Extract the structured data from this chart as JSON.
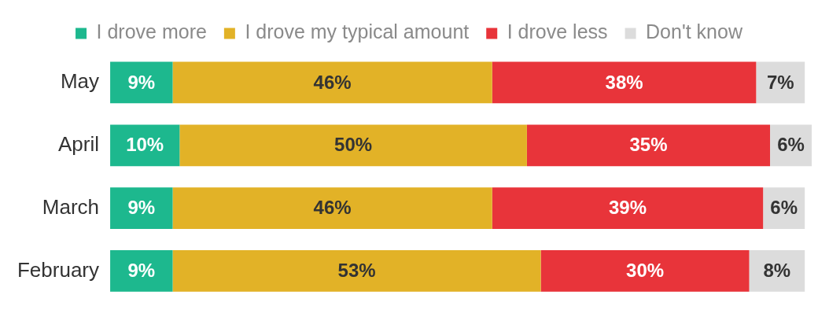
{
  "chart_data": {
    "type": "bar",
    "orientation": "horizontal",
    "stacked": true,
    "legend": "top",
    "grid": false,
    "tick_labels": "y",
    "categories": [
      "May",
      "April",
      "March",
      "February"
    ],
    "series": [
      {
        "name": "I drove more",
        "color": "#1db88e",
        "values": [
          9,
          10,
          9,
          9
        ],
        "value_labels": [
          "9%",
          "10%",
          "9%",
          "9%"
        ]
      },
      {
        "name": "I drove my typical amount",
        "color": "#e2b227",
        "values": [
          46,
          50,
          46,
          53
        ],
        "value_labels": [
          "46%",
          "50%",
          "46%",
          "53%"
        ]
      },
      {
        "name": "I drove less",
        "color": "#e8343a",
        "values": [
          38,
          35,
          39,
          30
        ],
        "value_labels": [
          "38%",
          "35%",
          "39%",
          "30%"
        ]
      },
      {
        "name": "Don't know",
        "color": "#dcdcdc",
        "values": [
          7,
          6,
          6,
          8
        ],
        "value_labels": [
          "7%",
          "6%",
          "6%",
          "8%"
        ]
      }
    ]
  }
}
